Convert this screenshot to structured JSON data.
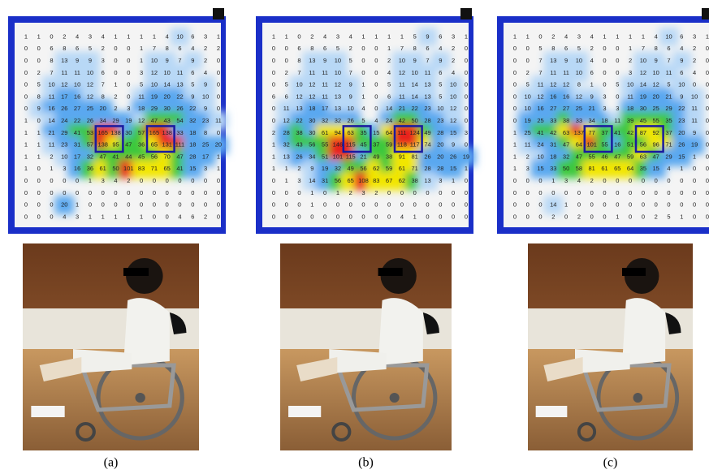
{
  "panels": [
    {
      "caption": "(a)",
      "grid": [
        [
          1,
          1,
          0,
          2,
          4,
          3,
          4,
          1,
          1,
          1,
          1,
          4,
          10,
          6,
          3,
          1
        ],
        [
          0,
          0,
          6,
          8,
          6,
          5,
          2,
          0,
          0,
          1,
          7,
          8,
          6,
          4,
          2,
          2
        ],
        [
          0,
          0,
          8,
          13,
          9,
          9,
          3,
          0,
          0,
          1,
          10,
          9,
          7,
          9,
          2,
          0
        ],
        [
          0,
          2,
          7,
          11,
          11,
          10,
          6,
          0,
          0,
          3,
          12,
          10,
          11,
          6,
          4,
          0
        ],
        [
          0,
          5,
          10,
          12,
          10,
          12,
          7,
          1,
          0,
          5,
          10,
          14,
          13,
          5,
          9,
          0
        ],
        [
          0,
          8,
          11,
          17,
          16,
          12,
          8,
          2,
          0,
          11,
          19,
          20,
          22,
          9,
          10,
          0
        ],
        [
          0,
          9,
          16,
          26,
          27,
          25,
          20,
          2,
          3,
          18,
          29,
          30,
          26,
          22,
          9,
          0
        ],
        [
          1,
          0,
          14,
          24,
          22,
          26,
          34,
          29,
          19,
          12,
          47,
          43,
          54,
          32,
          23,
          11
        ],
        [
          1,
          1,
          21,
          29,
          41,
          53,
          165,
          138,
          30,
          57,
          165,
          138,
          33,
          18,
          8,
          0
        ],
        [
          1,
          1,
          11,
          23,
          31,
          57,
          138,
          95,
          47,
          36,
          65,
          131,
          111,
          18,
          25,
          20
        ],
        [
          1,
          1,
          2,
          10,
          17,
          32,
          47,
          41,
          44,
          45,
          56,
          70,
          47,
          28,
          17,
          1
        ],
        [
          1,
          0,
          1,
          3,
          16,
          36,
          61,
          50,
          101,
          83,
          71,
          65,
          41,
          15,
          3,
          1
        ],
        [
          0,
          0,
          0,
          0,
          0,
          1,
          3,
          4,
          2,
          0,
          0,
          0,
          0,
          0,
          0,
          0
        ],
        [
          0,
          0,
          0,
          0,
          0,
          0,
          0,
          0,
          0,
          0,
          0,
          0,
          0,
          0,
          0,
          0
        ],
        [
          0,
          0,
          0,
          20,
          1,
          0,
          0,
          0,
          0,
          0,
          0,
          0,
          0,
          0,
          0,
          0
        ],
        [
          0,
          0,
          0,
          4,
          3,
          1,
          1,
          1,
          1,
          1,
          0,
          0,
          4,
          6,
          2,
          0
        ]
      ]
    },
    {
      "caption": "(b)",
      "grid": [
        [
          1,
          1,
          0,
          2,
          4,
          3,
          4,
          1,
          1,
          1,
          1,
          5,
          9,
          6,
          3,
          1
        ],
        [
          0,
          0,
          6,
          8,
          6,
          5,
          2,
          0,
          0,
          1,
          7,
          8,
          6,
          4,
          2,
          0
        ],
        [
          0,
          0,
          8,
          13,
          9,
          10,
          5,
          0,
          0,
          2,
          10,
          9,
          7,
          9,
          2,
          0
        ],
        [
          0,
          2,
          7,
          11,
          11,
          10,
          7,
          0,
          0,
          4,
          12,
          10,
          11,
          6,
          4,
          0
        ],
        [
          0,
          5,
          10,
          12,
          11,
          12,
          9,
          1,
          0,
          5,
          11,
          14,
          13,
          5,
          10,
          0
        ],
        [
          6,
          6,
          12,
          12,
          11,
          13,
          9,
          1,
          0,
          6,
          11,
          14,
          13,
          5,
          10,
          0
        ],
        [
          0,
          11,
          13,
          18,
          17,
          13,
          10,
          4,
          0,
          14,
          21,
          22,
          23,
          10,
          12,
          0
        ],
        [
          0,
          12,
          22,
          30,
          32,
          32,
          26,
          5,
          4,
          24,
          42,
          50,
          28,
          23,
          12,
          0
        ],
        [
          2,
          28,
          38,
          30,
          61,
          94,
          63,
          35,
          15,
          64,
          111,
          124,
          49,
          28,
          15,
          3
        ],
        [
          1,
          32,
          43,
          56,
          55,
          146,
          115,
          45,
          37,
          59,
          118,
          117,
          74,
          20,
          9,
          0
        ],
        [
          1,
          13,
          26,
          34,
          51,
          101,
          115,
          21,
          49,
          38,
          91,
          81,
          26,
          20,
          26,
          19
        ],
        [
          1,
          1,
          2,
          9,
          19,
          32,
          49,
          56,
          62,
          59,
          61,
          71,
          28,
          28,
          15,
          1
        ],
        [
          0,
          1,
          3,
          14,
          31,
          56,
          65,
          108,
          83,
          67,
          62,
          38,
          13,
          3,
          1,
          0
        ],
        [
          0,
          0,
          0,
          1,
          0,
          1,
          2,
          3,
          2,
          0,
          0,
          0,
          0,
          0,
          0,
          0
        ],
        [
          0,
          0,
          0,
          1,
          0,
          0,
          0,
          0,
          0,
          0,
          0,
          0,
          0,
          0,
          0,
          0
        ],
        [
          0,
          0,
          0,
          0,
          0,
          0,
          0,
          0,
          0,
          0,
          4,
          1,
          0,
          0,
          0,
          0
        ]
      ]
    },
    {
      "caption": "(c)",
      "grid": [
        [
          1,
          1,
          0,
          2,
          4,
          3,
          4,
          1,
          1,
          1,
          1,
          4,
          10,
          6,
          3,
          1
        ],
        [
          0,
          0,
          5,
          8,
          6,
          5,
          2,
          0,
          0,
          1,
          7,
          8,
          6,
          4,
          2,
          0
        ],
        [
          0,
          0,
          7,
          13,
          9,
          10,
          4,
          0,
          0,
          2,
          10,
          9,
          7,
          9,
          2,
          0
        ],
        [
          0,
          2,
          7,
          11,
          11,
          10,
          6,
          0,
          0,
          3,
          12,
          10,
          11,
          6,
          4,
          0
        ],
        [
          0,
          5,
          11,
          12,
          12,
          8,
          1,
          0,
          5,
          10,
          14,
          12,
          5,
          10,
          0,
          0
        ],
        [
          0,
          10,
          12,
          16,
          16,
          12,
          9,
          3,
          0,
          11,
          19,
          20,
          21,
          9,
          10,
          0
        ],
        [
          0,
          10,
          16,
          27,
          27,
          25,
          21,
          3,
          3,
          18,
          30,
          25,
          29,
          22,
          11,
          0
        ],
        [
          0,
          19,
          25,
          33,
          38,
          33,
          34,
          18,
          11,
          39,
          45,
          55,
          35,
          23,
          11,
          0
        ],
        [
          1,
          25,
          41,
          42,
          63,
          137,
          77,
          37,
          41,
          42,
          87,
          92,
          37,
          20,
          9,
          0
        ],
        [
          1,
          11,
          24,
          31,
          47,
          64,
          101,
          55,
          16,
          51,
          56,
          96,
          71,
          26,
          19,
          0
        ],
        [
          1,
          2,
          10,
          18,
          32,
          47,
          55,
          46,
          47,
          59,
          63,
          47,
          29,
          15,
          1,
          0
        ],
        [
          1,
          3,
          15,
          33,
          50,
          58,
          81,
          61,
          65,
          64,
          35,
          15,
          4,
          1,
          0,
          0
        ],
        [
          0,
          0,
          0,
          1,
          3,
          4,
          2,
          0,
          0,
          0,
          0,
          0,
          0,
          0,
          0,
          0
        ],
        [
          0,
          0,
          0,
          0,
          0,
          0,
          0,
          0,
          0,
          0,
          0,
          0,
          0,
          0,
          0,
          0
        ],
        [
          0,
          0,
          0,
          14,
          1,
          0,
          0,
          0,
          0,
          0,
          0,
          0,
          0,
          0,
          0,
          0
        ],
        [
          0,
          0,
          0,
          2,
          0,
          2,
          0,
          0,
          1,
          0,
          0,
          2,
          5,
          1,
          0,
          0
        ]
      ]
    }
  ]
}
